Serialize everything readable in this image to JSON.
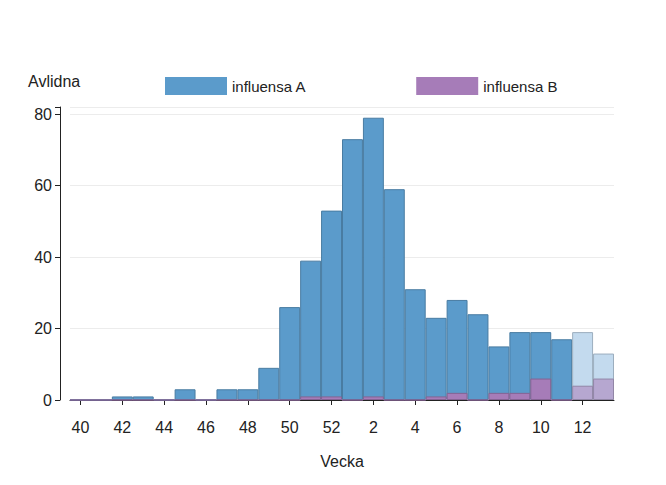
{
  "chart_data": {
    "type": "bar",
    "x_label": "Vecka",
    "y_label": "Avlidna",
    "categories": [
      "40",
      null,
      "42",
      null,
      "44",
      null,
      "46",
      null,
      "48",
      null,
      "50",
      null,
      "52",
      null,
      "2",
      null,
      "4",
      null,
      "6",
      null,
      "8",
      null,
      "10",
      null,
      "12",
      null
    ],
    "series": [
      {
        "name": "influensa A",
        "color": "#5b9bcb",
        "colors": [
          "#5b9bcb",
          "#5b9bcb",
          "#5b9bcb",
          "#5b9bcb",
          "#5b9bcb",
          "#5b9bcb",
          "#5b9bcb",
          "#5b9bcb",
          "#5b9bcb",
          "#5b9bcb",
          "#5b9bcb",
          "#5b9bcb",
          "#5b9bcb",
          "#5b9bcb",
          "#5b9bcb",
          "#5b9bcb",
          "#5b9bcb",
          "#5b9bcb",
          "#5b9bcb",
          "#5b9bcb",
          "#5b9bcb",
          "#5b9bcb",
          "#5b9bcb",
          "#5b9bcb",
          "#c3daee",
          "#c3daee"
        ],
        "values": [
          0,
          0,
          1,
          1,
          0,
          3,
          0,
          3,
          3,
          9,
          26,
          39,
          53,
          73,
          79,
          59,
          31,
          23,
          28,
          24,
          15,
          19,
          19,
          17,
          19,
          13
        ]
      },
      {
        "name": "influensa B",
        "color": "#a67cb8",
        "colors": [
          "#a67cb8",
          "#a67cb8",
          "#a67cb8",
          "#a67cb8",
          "#a67cb8",
          "#a67cb8",
          "#a67cb8",
          "#a67cb8",
          "#a67cb8",
          "#a67cb8",
          "#a67cb8",
          "#a67cb8",
          "#a67cb8",
          "#a67cb8",
          "#a67cb8",
          "#a67cb8",
          "#a67cb8",
          "#a67cb8",
          "#a67cb8",
          "#a67cb8",
          "#a67cb8",
          "#a67cb8",
          "#a67cb8",
          "#a67cb8",
          "#b6a7d0",
          "#b6a7d0"
        ],
        "values": [
          0,
          0,
          0,
          0,
          0,
          0,
          0,
          0,
          0,
          0,
          0,
          1,
          1,
          0,
          1,
          0,
          0,
          1,
          2,
          0,
          2,
          2,
          6,
          0,
          4,
          6
        ]
      }
    ],
    "ylim": [
      0,
      82
    ],
    "yticks": [
      0,
      20,
      40,
      60,
      80
    ],
    "grid": true,
    "legend": "top",
    "stacked": false
  }
}
